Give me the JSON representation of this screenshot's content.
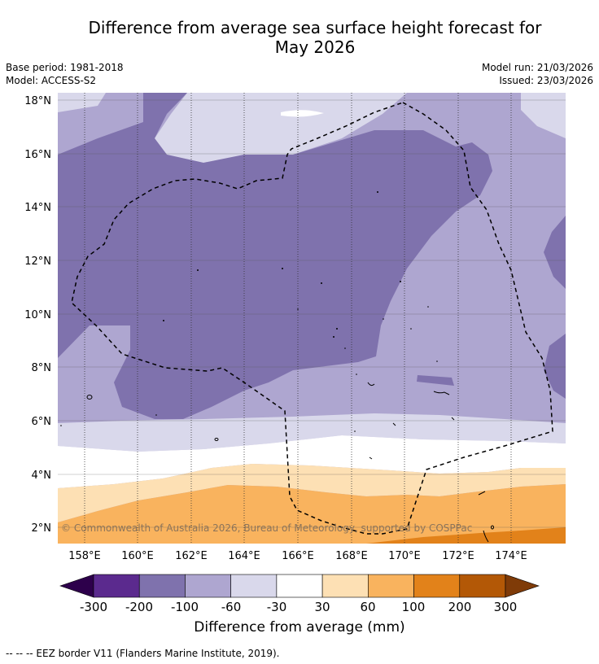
{
  "title": {
    "line1": "Difference from average sea surface height forecast for",
    "line2": "May 2026"
  },
  "meta": {
    "base_period": "Base period: 1981-2018",
    "model": "Model: ACCESS-S2",
    "model_run": "Model run: 21/03/2026",
    "issued": "Issued: 23/03/2026"
  },
  "map": {
    "lat_labels": [
      "18°N",
      "16°N",
      "14°N",
      "12°N",
      "10°N",
      "8°N",
      "6°N",
      "4°N",
      "2°N"
    ],
    "lon_labels": [
      "158°E",
      "160°E",
      "162°E",
      "164°E",
      "166°E",
      "168°E",
      "170°E",
      "172°E",
      "174°E"
    ],
    "copyright": "© Commonwealth of Australia 2026, Bureau of Meteorology, supported by COSPPac"
  },
  "colorbar": {
    "title": "Difference from average (mm)",
    "ticks": [
      "-300",
      "-200",
      "-100",
      "-60",
      "-30",
      "30",
      "60",
      "100",
      "200",
      "300"
    ],
    "colors": [
      "#5b2a8e",
      "#7f72ad",
      "#aea6d0",
      "#d9d8eb",
      "#ffffff",
      "#fde0b4",
      "#f9b35e",
      "#e2821a",
      "#b35806"
    ],
    "under_color": "#2d004b",
    "over_color": "#7f3b08"
  },
  "legend_note": "--  --  -- EEZ border V11 (Flanders Marine Institute, 2019)."
}
